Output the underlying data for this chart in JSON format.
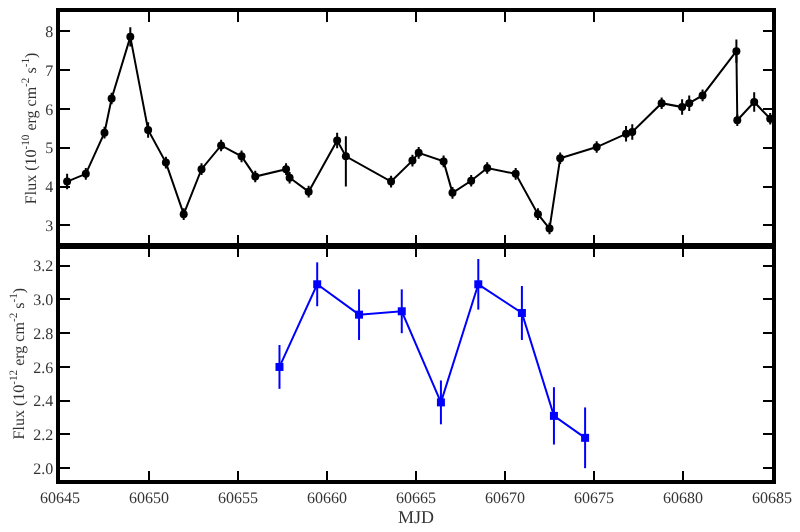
{
  "chart_data": [
    {
      "type": "line",
      "ylabel": "Flux (10$^{-10}$ erg cm$^{-2}$ s$^{-1}$)",
      "xlim": [
        60645,
        60685
      ],
      "xticks": [
        {
          "value": 60645,
          "label": null
        },
        {
          "value": 60650,
          "label": null
        },
        {
          "value": 60655,
          "label": null
        },
        {
          "value": 60660,
          "label": null
        },
        {
          "value": 60665,
          "label": null
        },
        {
          "value": 60670,
          "label": null
        },
        {
          "value": 60675,
          "label": null
        },
        {
          "value": 60680,
          "label": null
        },
        {
          "value": 60685,
          "label": null
        }
      ],
      "ylim": [
        2.5,
        8.5
      ],
      "yticks": [
        3,
        4,
        5,
        6,
        7,
        8
      ],
      "tick_labels": "y",
      "marker": "circle",
      "line_style": "solid",
      "series": [
        {
          "color": "#000000",
          "x": [
            60645.4,
            60646.45,
            60647.5,
            60647.9,
            60648.95,
            60649.95,
            60650.95,
            60651.95,
            60652.95,
            60654.05,
            60655.2,
            60655.97,
            60657.7,
            60657.9,
            60658.97,
            60660.57,
            60661.06,
            60663.6,
            60664.8,
            60665.15,
            60666.55,
            60667.05,
            60668.1,
            60669.0,
            60670.6,
            60671.85,
            60672.5,
            60673.1,
            60675.15,
            60676.8,
            60677.15,
            60678.8,
            60679.95,
            60680.35,
            60681.1,
            60683.0,
            60683.05,
            60684.0,
            60684.9
          ],
          "values": [
            4.13,
            4.33,
            5.39,
            6.27,
            7.86,
            5.46,
            4.62,
            3.29,
            4.45,
            5.06,
            4.78,
            4.26,
            4.45,
            4.23,
            3.87,
            5.19,
            4.78,
            4.13,
            4.67,
            4.87,
            4.65,
            3.84,
            4.15,
            4.48,
            4.33,
            3.29,
            2.92,
            4.73,
            5.02,
            5.36,
            5.41,
            6.15,
            6.05,
            6.15,
            6.35,
            7.49,
            5.71,
            6.18,
            5.75
          ],
          "errors": [
            0.2,
            0.15,
            0.15,
            0.15,
            0.25,
            0.2,
            0.15,
            0.15,
            0.15,
            0.15,
            0.15,
            0.15,
            0.15,
            0.15,
            0.15,
            0.2,
            [
              4.0,
              5.3
            ],
            0.15,
            0.15,
            0.15,
            0.15,
            0.15,
            0.15,
            0.15,
            0.15,
            0.15,
            0.15,
            0.15,
            0.15,
            0.2,
            0.2,
            0.15,
            0.2,
            0.2,
            0.15,
            0.3,
            0.15,
            0.25,
            0.15
          ]
        }
      ]
    },
    {
      "type": "line",
      "xlabel": "MJD",
      "ylabel": "Flux (10$^{-12}$ erg cm$^{-2}$ s$^{-1}$)",
      "xlim": [
        60645,
        60685
      ],
      "xticks": [
        60645,
        60650,
        60655,
        60660,
        60665,
        60670,
        60675,
        60680,
        60685
      ],
      "ylim": [
        1.93,
        3.31
      ],
      "yticks": [
        {
          "value": 2.0,
          "label": "2.0"
        },
        {
          "value": 2.2,
          "label": "2.2"
        },
        {
          "value": 2.4,
          "label": "2.4"
        },
        {
          "value": 2.6,
          "label": "2.6"
        },
        {
          "value": 2.8,
          "label": "2.8"
        },
        {
          "value": 3.0,
          "label": "3.0"
        },
        {
          "value": 3.2,
          "label": "3.2"
        }
      ],
      "marker": "square",
      "line_style": "solid",
      "series": [
        {
          "color": "#0000ff",
          "x": [
            60657.33,
            60659.45,
            60661.8,
            60664.2,
            60666.4,
            60668.5,
            60670.95,
            60672.75,
            60674.5
          ],
          "values": [
            2.6,
            3.09,
            2.91,
            2.93,
            2.39,
            3.09,
            2.92,
            2.31,
            2.18
          ],
          "errors": [
            0.13,
            0.13,
            0.15,
            0.13,
            0.13,
            0.15,
            0.16,
            0.17,
            0.18
          ]
        }
      ]
    }
  ]
}
